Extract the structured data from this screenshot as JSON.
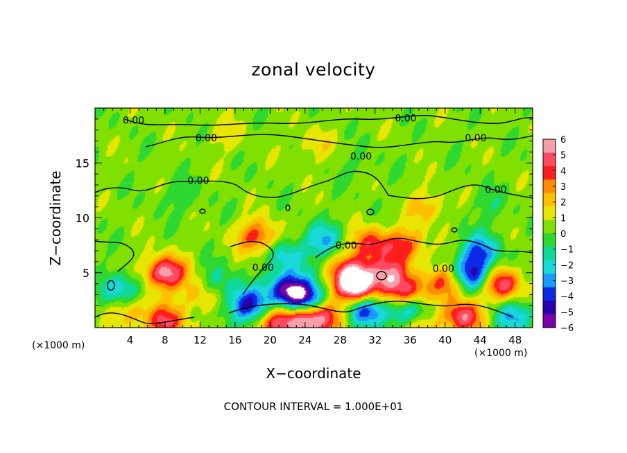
{
  "chart_data": {
    "type": "heatmap",
    "title": "zonal velocity",
    "xlabel": "X−coordinate",
    "ylabel": "Z−coordinate",
    "x_unit_left": "(×1000 m)",
    "x_unit_right": "(×1000 m)",
    "annotation": "CONTOUR INTERVAL = 1.000E+01",
    "xlim": [
      0,
      50
    ],
    "ylim": [
      0,
      20
    ],
    "x_ticks": [
      4,
      8,
      12,
      16,
      20,
      24,
      28,
      32,
      36,
      40,
      44,
      48
    ],
    "x_tick_labels": [
      "4",
      "8",
      "12",
      "16",
      "20",
      "24",
      "28",
      "32",
      "36",
      "40",
      "44",
      "48"
    ],
    "y_ticks": [
      5,
      10,
      15
    ],
    "y_tick_labels": [
      "5",
      "10",
      "15"
    ],
    "colorbar": {
      "min": -6,
      "max": 6,
      "tick_labels": [
        "6",
        "5",
        "4",
        "3",
        "2",
        "1",
        "0",
        "−1",
        "−2",
        "−3",
        "−4",
        "−5",
        "−6"
      ],
      "colors": [
        "#f5a0a8",
        "#ff4a60",
        "#ff1e1e",
        "#ff8c00",
        "#ffc000",
        "#e6e600",
        "#80e000",
        "#2ed830",
        "#10d89a",
        "#18d8d8",
        "#1a9aff",
        "#0a2ae6",
        "#2a00b0",
        "#7a00aa"
      ]
    },
    "contour_labels": [
      {
        "text": "0.00",
        "x": 4.4,
        "z": 18.9
      },
      {
        "text": "0.00",
        "x": 12.7,
        "z": 17.3
      },
      {
        "text": "0.00",
        "x": 35.5,
        "z": 19.1
      },
      {
        "text": "0.00",
        "x": 43.5,
        "z": 17.3
      },
      {
        "text": "0.00",
        "x": 30.4,
        "z": 15.6
      },
      {
        "text": "0.00",
        "x": 11.8,
        "z": 13.4
      },
      {
        "text": "0.00",
        "x": 45.8,
        "z": 12.6
      },
      {
        "text": "0.00",
        "x": 28.7,
        "z": 7.5
      },
      {
        "text": "0.00",
        "x": 19.2,
        "z": 5.5
      },
      {
        "text": "0.00",
        "x": 39.8,
        "z": 5.4
      }
    ],
    "features": [
      {
        "x": 8,
        "z": 5.0,
        "v": 5.5
      },
      {
        "x": 18.5,
        "z": 8.3,
        "v": 3.6
      },
      {
        "x": 29.5,
        "z": 5.0,
        "v": 5.0
      },
      {
        "x": 29.7,
        "z": 3.5,
        "v": 5.8
      },
      {
        "x": 31.5,
        "z": 7.6,
        "v": 3.6
      },
      {
        "x": 33.5,
        "z": 4.8,
        "v": 4.4
      },
      {
        "x": 35.5,
        "z": 3.1,
        "v": 4.6
      },
      {
        "x": 35.5,
        "z": 7.5,
        "v": 3.4
      },
      {
        "x": 40.5,
        "z": 4.2,
        "v": 3.8
      },
      {
        "x": 46.5,
        "z": 4.0,
        "v": 4.6
      },
      {
        "x": 12,
        "z": 3.0,
        "v": 2.2
      },
      {
        "x": 8,
        "z": 0.5,
        "v": 4.0
      },
      {
        "x": 4,
        "z": 1.5,
        "v": 2.0
      },
      {
        "x": 17.5,
        "z": 2.0,
        "v": -4.8
      },
      {
        "x": 22.0,
        "z": 3.5,
        "v": -5.6
      },
      {
        "x": 24.0,
        "z": 2.5,
        "v": -5.0
      },
      {
        "x": 24,
        "z": 0.7,
        "v": 5.5
      },
      {
        "x": 21,
        "z": 0.5,
        "v": 4.0
      },
      {
        "x": 27,
        "z": 1.0,
        "v": 3.0
      },
      {
        "x": 31,
        "z": 1.6,
        "v": -5.0
      },
      {
        "x": 36,
        "z": 1.5,
        "v": -4.2
      },
      {
        "x": 37,
        "z": 0.4,
        "v": 2.5
      },
      {
        "x": 43,
        "z": 4.8,
        "v": -5.5
      },
      {
        "x": 44,
        "z": 7.0,
        "v": -3.5
      },
      {
        "x": 42,
        "z": 1.0,
        "v": 4.5
      },
      {
        "x": 48,
        "z": 1.0,
        "v": -3.0
      },
      {
        "x": 3,
        "z": 3.5,
        "v": -3.0
      },
      {
        "x": 26,
        "z": 8.0,
        "v": -2.8
      },
      {
        "x": 22,
        "z": 6.5,
        "v": -2.5
      },
      {
        "x": 14,
        "z": 4.0,
        "v": -2.0
      },
      {
        "x": 38,
        "z": 11.0,
        "v": 1.8
      },
      {
        "x": 10,
        "z": 12.0,
        "v": -0.9
      },
      {
        "x": 45,
        "z": 11.0,
        "v": -0.9
      },
      {
        "x": 30,
        "z": 14.5,
        "v": -0.6
      },
      {
        "x": 25,
        "z": 16.7,
        "v": 1.1
      },
      {
        "x": 15,
        "z": 17.5,
        "v": 1.0
      }
    ]
  }
}
